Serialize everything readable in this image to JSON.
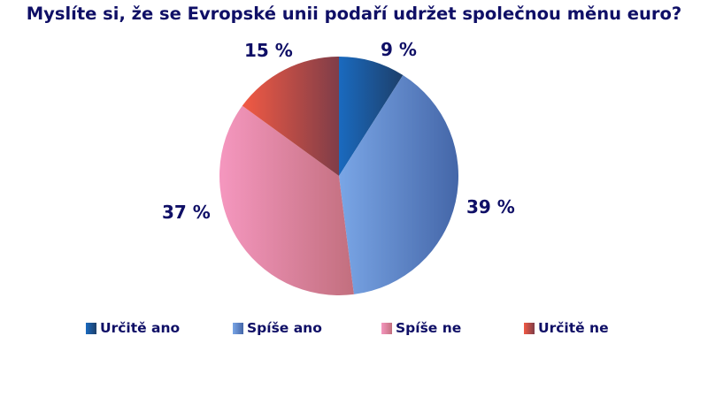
{
  "chart_data": {
    "type": "pie",
    "title": "Myslíte si, že se Evropské unii podaří udržet společnou měnu euro?",
    "categories": [
      "Určitě ano",
      "Spíše ano",
      "Spíše ne",
      "Určitě ne"
    ],
    "values": [
      9,
      39,
      37,
      15
    ],
    "unit": "%",
    "data_labels": [
      "9 %",
      "39 %",
      "37 %",
      "15 %"
    ],
    "colors": [
      "#1f5fa8",
      "#6f98d6",
      "#e98aab",
      "#d8534a"
    ],
    "start_angle": "12 o'clock, clockwise",
    "legend_position": "bottom"
  },
  "title": "Myslíte si, že se Evropské unii podaří udržet společnou měnu euro?",
  "labels": {
    "urcite_ano": "9 %",
    "spise_ano": "39 %",
    "spise_ne": "37 %",
    "urcite_ne": "15 %"
  },
  "legend": [
    {
      "label": "Určitě ano",
      "color": "#1f5fa8"
    },
    {
      "label": "Spíše ano",
      "color": "#6f98d6"
    },
    {
      "label": "Spíše ne",
      "color": "#e98aab"
    },
    {
      "label": "Určitě ne",
      "color": "#d8534a"
    }
  ]
}
